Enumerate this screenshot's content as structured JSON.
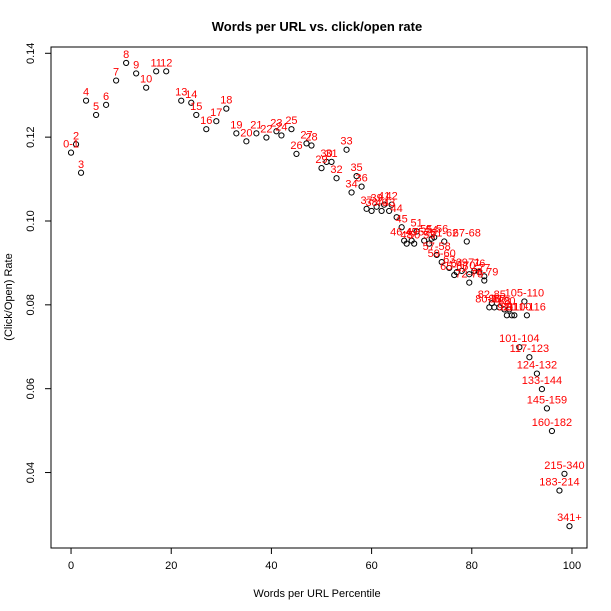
{
  "chart_data": {
    "type": "scatter",
    "title": "Words per URL vs. click/open rate",
    "xlabel": "Words per URL Percentile",
    "ylabel": "(Click/Open) Rate",
    "xlim": [
      -4,
      103
    ],
    "ylim": [
      0.022,
      0.1415
    ],
    "xticks": [
      0,
      20,
      40,
      60,
      80,
      100
    ],
    "yticks": [
      0.04,
      0.06,
      0.08,
      0.1,
      0.12,
      0.14
    ],
    "ytick_labels": [
      "0.04",
      "0.06",
      "0.08",
      "0.10",
      "0.12",
      "0.14"
    ],
    "grid": false,
    "point_style": "open-circle",
    "label_color": "#ff0000",
    "points": [
      {
        "x": 0,
        "y": 0.1163,
        "label": "0-1"
      },
      {
        "x": 1,
        "y": 0.1183,
        "label": "2"
      },
      {
        "x": 2,
        "y": 0.1115,
        "label": "3"
      },
      {
        "x": 3,
        "y": 0.1287,
        "label": "4"
      },
      {
        "x": 5,
        "y": 0.1253,
        "label": "5"
      },
      {
        "x": 7,
        "y": 0.1277,
        "label": "6"
      },
      {
        "x": 9,
        "y": 0.1335,
        "label": "7"
      },
      {
        "x": 11,
        "y": 0.1377,
        "label": "8"
      },
      {
        "x": 13,
        "y": 0.1352,
        "label": "9"
      },
      {
        "x": 15,
        "y": 0.1318,
        "label": "10"
      },
      {
        "x": 17,
        "y": 0.1357,
        "label": "11"
      },
      {
        "x": 19,
        "y": 0.1357,
        "label": "12"
      },
      {
        "x": 22,
        "y": 0.1287,
        "label": "13"
      },
      {
        "x": 24,
        "y": 0.1282,
        "label": "14"
      },
      {
        "x": 25,
        "y": 0.1253,
        "label": "15"
      },
      {
        "x": 27,
        "y": 0.1219,
        "label": "16"
      },
      {
        "x": 29,
        "y": 0.1238,
        "label": "17"
      },
      {
        "x": 31,
        "y": 0.1268,
        "label": "18"
      },
      {
        "x": 33,
        "y": 0.1209,
        "label": "19"
      },
      {
        "x": 35,
        "y": 0.119,
        "label": "20"
      },
      {
        "x": 37,
        "y": 0.1209,
        "label": "21"
      },
      {
        "x": 39,
        "y": 0.1199,
        "label": "22"
      },
      {
        "x": 41,
        "y": 0.1214,
        "label": "23"
      },
      {
        "x": 42,
        "y": 0.1204,
        "label": "24"
      },
      {
        "x": 44,
        "y": 0.1219,
        "label": "25"
      },
      {
        "x": 45,
        "y": 0.116,
        "label": "26"
      },
      {
        "x": 47,
        "y": 0.1185,
        "label": "27"
      },
      {
        "x": 48,
        "y": 0.118,
        "label": "28"
      },
      {
        "x": 50,
        "y": 0.1126,
        "label": "29"
      },
      {
        "x": 51,
        "y": 0.1141,
        "label": "30"
      },
      {
        "x": 52,
        "y": 0.1141,
        "label": "31"
      },
      {
        "x": 53,
        "y": 0.1102,
        "label": "32"
      },
      {
        "x": 55,
        "y": 0.117,
        "label": "33"
      },
      {
        "x": 56,
        "y": 0.1068,
        "label": "34"
      },
      {
        "x": 57,
        "y": 0.1107,
        "label": "35"
      },
      {
        "x": 58,
        "y": 0.1082,
        "label": "36"
      },
      {
        "x": 59,
        "y": 0.1029,
        "label": "37"
      },
      {
        "x": 60,
        "y": 0.1024,
        "label": "38"
      },
      {
        "x": 61,
        "y": 0.1034,
        "label": "39"
      },
      {
        "x": 62,
        "y": 0.1024,
        "label": "40"
      },
      {
        "x": 62.5,
        "y": 0.1039,
        "label": "41"
      },
      {
        "x": 64,
        "y": 0.1039,
        "label": "42"
      },
      {
        "x": 63.5,
        "y": 0.1024,
        "label": "43"
      },
      {
        "x": 65,
        "y": 0.1009,
        "label": "44"
      },
      {
        "x": 66,
        "y": 0.0985,
        "label": "45"
      },
      {
        "x": 66.5,
        "y": 0.0953,
        "label": "46-47"
      },
      {
        "x": 67,
        "y": 0.0946,
        "label": "48"
      },
      {
        "x": 68,
        "y": 0.0953,
        "label": "49"
      },
      {
        "x": 68.5,
        "y": 0.0946,
        "label": "50"
      },
      {
        "x": 69,
        "y": 0.0975,
        "label": "51"
      },
      {
        "x": 70.5,
        "y": 0.0953,
        "label": "52"
      },
      {
        "x": 71.5,
        "y": 0.0946,
        "label": "53"
      },
      {
        "x": 72,
        "y": 0.0958,
        "label": "54"
      },
      {
        "x": 72.5,
        "y": 0.0961,
        "label": "55-56"
      },
      {
        "x": 73,
        "y": 0.0919,
        "label": "57-58"
      },
      {
        "x": 74,
        "y": 0.0902,
        "label": "59-60"
      },
      {
        "x": 74.5,
        "y": 0.0951,
        "label": "61-62"
      },
      {
        "x": 75.5,
        "y": 0.0888,
        "label": "63"
      },
      {
        "x": 77,
        "y": 0.0878,
        "label": "64"
      },
      {
        "x": 76.5,
        "y": 0.0871,
        "label": "65-66"
      },
      {
        "x": 79,
        "y": 0.0951,
        "label": "67-68"
      },
      {
        "x": 78,
        "y": 0.0881,
        "label": "69"
      },
      {
        "x": 79.5,
        "y": 0.0873,
        "label": "70"
      },
      {
        "x": 80.5,
        "y": 0.0881,
        "label": "71"
      },
      {
        "x": 79.5,
        "y": 0.0853,
        "label": "72-75"
      },
      {
        "x": 81.5,
        "y": 0.0878,
        "label": "76"
      },
      {
        "x": 82.5,
        "y": 0.0868,
        "label": "77"
      },
      {
        "x": 82.5,
        "y": 0.0858,
        "label": "78-79"
      },
      {
        "x": 83.5,
        "y": 0.0794,
        "label": "80-81"
      },
      {
        "x": 84,
        "y": 0.0804,
        "label": "82-85"
      },
      {
        "x": 84.5,
        "y": 0.0794,
        "label": "86"
      },
      {
        "x": 85.5,
        "y": 0.0794,
        "label": "87"
      },
      {
        "x": 86.5,
        "y": 0.0789,
        "label": "88"
      },
      {
        "x": 87,
        "y": 0.0775,
        "label": "89"
      },
      {
        "x": 87.5,
        "y": 0.0789,
        "label": "90"
      },
      {
        "x": 88,
        "y": 0.0775,
        "label": "91"
      },
      {
        "x": 88.5,
        "y": 0.0775,
        "label": "92-100"
      },
      {
        "x": 90.5,
        "y": 0.0808,
        "label": "105-110"
      },
      {
        "x": 91,
        "y": 0.0775,
        "label": "111-116"
      },
      {
        "x": 89.5,
        "y": 0.0699,
        "label": "101-104"
      },
      {
        "x": 91.5,
        "y": 0.0675,
        "label": "117-123"
      },
      {
        "x": 93,
        "y": 0.0636,
        "label": "124-132"
      },
      {
        "x": 94,
        "y": 0.0599,
        "label": "133-144"
      },
      {
        "x": 95,
        "y": 0.0553,
        "label": "145-159"
      },
      {
        "x": 96,
        "y": 0.0499,
        "label": "160-182"
      },
      {
        "x": 97.5,
        "y": 0.0357,
        "label": "183-214"
      },
      {
        "x": 98.5,
        "y": 0.0397,
        "label": "215-340"
      },
      {
        "x": 99.5,
        "y": 0.0272,
        "label": "341+"
      }
    ]
  }
}
